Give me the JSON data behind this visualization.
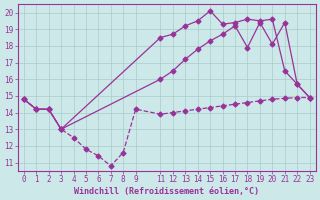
{
  "xlabel": "Windchill (Refroidissement éolien,°C)",
  "bg_color": "#cce8e8",
  "line_color": "#993399",
  "xlim": [
    -0.5,
    23.5
  ],
  "ylim": [
    10.5,
    20.5
  ],
  "yticks": [
    11,
    12,
    13,
    14,
    15,
    16,
    17,
    18,
    19,
    20
  ],
  "xticks": [
    0,
    1,
    2,
    3,
    4,
    5,
    6,
    7,
    8,
    9,
    11,
    12,
    13,
    14,
    15,
    16,
    17,
    18,
    19,
    20,
    21,
    22,
    23
  ],
  "line_dashed_x": [
    0,
    1,
    2,
    3,
    4,
    5,
    6,
    7,
    8,
    9,
    11,
    12,
    13,
    14,
    15,
    16,
    17,
    18,
    19,
    20,
    21,
    22,
    23
  ],
  "line_dashed_y": [
    14.8,
    14.2,
    14.2,
    13.0,
    12.5,
    11.8,
    11.4,
    10.8,
    11.6,
    14.2,
    13.9,
    14.0,
    14.1,
    14.2,
    14.3,
    14.4,
    14.5,
    14.6,
    14.7,
    14.8,
    14.85,
    14.9,
    14.9
  ],
  "line_upper_x": [
    0,
    1,
    2,
    3,
    11,
    12,
    13,
    14,
    15,
    16,
    17,
    18,
    19,
    20,
    21,
    22,
    23
  ],
  "line_upper_y": [
    14.8,
    14.2,
    14.2,
    13.0,
    18.5,
    18.7,
    19.2,
    19.5,
    20.1,
    19.3,
    19.4,
    19.6,
    19.5,
    19.6,
    16.5,
    15.7,
    14.9
  ],
  "line_lower_x": [
    0,
    1,
    2,
    3,
    11,
    12,
    13,
    14,
    15,
    16,
    17,
    18,
    19,
    20,
    21,
    22,
    23
  ],
  "line_lower_y": [
    14.8,
    14.2,
    14.2,
    13.0,
    16.0,
    16.5,
    17.2,
    17.8,
    18.3,
    18.7,
    19.2,
    17.9,
    19.4,
    18.1,
    19.4,
    15.7,
    14.9
  ],
  "marker": "D",
  "marker_size": 2.5,
  "grid_color": "#aacccc",
  "font_color": "#993399",
  "font_name": "monospace",
  "tick_fontsize": 5.5,
  "xlabel_fontsize": 6.0
}
